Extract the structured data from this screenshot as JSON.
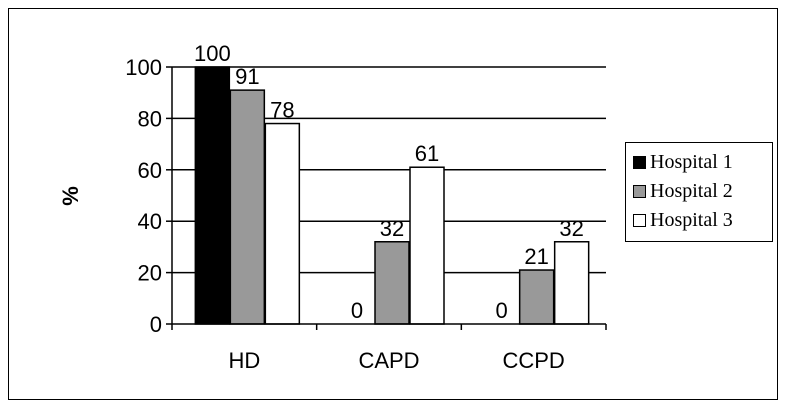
{
  "chart_data": {
    "type": "bar",
    "categories": [
      "HD",
      "CAPD",
      "CCPD"
    ],
    "series": [
      {
        "name": "Hospital 1",
        "values": [
          100,
          0,
          0
        ],
        "color": "#000000"
      },
      {
        "name": "Hospital 2",
        "values": [
          91,
          32,
          21
        ],
        "color": "#999999"
      },
      {
        "name": "Hospital 3",
        "values": [
          78,
          61,
          32
        ],
        "color": "#ffffff"
      }
    ],
    "data_labels": [
      [
        "100",
        "0",
        "0"
      ],
      [
        "91",
        "32",
        "21"
      ],
      [
        "78",
        "61",
        "32"
      ]
    ],
    "ylabel": "%",
    "xlabel": "",
    "ylim": [
      0,
      100
    ],
    "yticks": [
      "0",
      "20",
      "40",
      "60",
      "80",
      "100"
    ],
    "grid": "horizontal",
    "legend_position": "right"
  }
}
